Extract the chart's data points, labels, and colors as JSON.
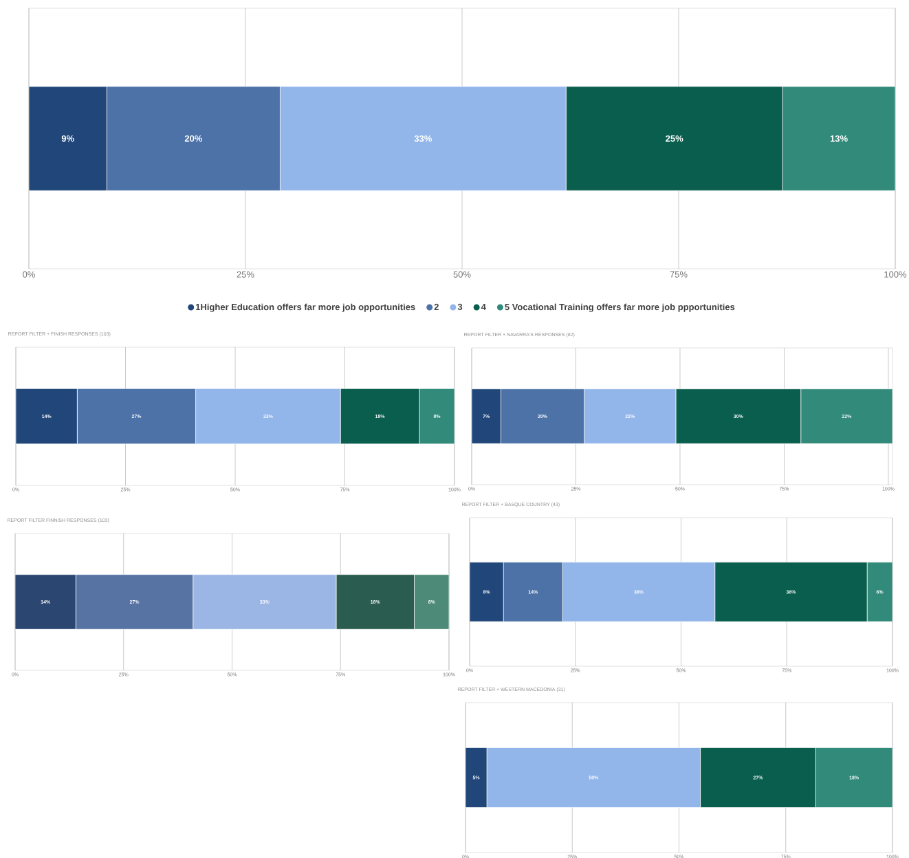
{
  "chart_data": [
    {
      "type": "bar",
      "orientation": "horizontal",
      "stacked": true,
      "categories": [
        null
      ],
      "xlim": [
        0,
        100
      ],
      "xticks": [
        {
          "value": 0,
          "label": "0%"
        },
        {
          "value": 25,
          "label": "25%"
        },
        {
          "value": 50,
          "label": "50%"
        },
        {
          "value": 75,
          "label": "75%"
        },
        {
          "value": 100,
          "label": "100%"
        }
      ],
      "grid": "x",
      "legend": "bottom",
      "marker": "circle",
      "series": [
        {
          "name": "1Higher Education offers far more job opportunities",
          "color": "#21477a",
          "values": [
            9
          ],
          "value_labels": [
            "9%"
          ]
        },
        {
          "name": "2",
          "color": "#4c72a8",
          "values": [
            20
          ],
          "value_labels": [
            "20%"
          ]
        },
        {
          "name": "3",
          "color": "#92b5ea",
          "values": [
            33
          ],
          "value_labels": [
            "33%"
          ]
        },
        {
          "name": "4",
          "color": "#0a5e4e",
          "values": [
            25
          ],
          "value_labels": [
            "25%"
          ]
        },
        {
          "name": "5 Vocational Training offers far more job ppportunities",
          "color": "#318a7a",
          "values": [
            13
          ],
          "value_labels": [
            "13%"
          ]
        }
      ]
    },
    {
      "type": "bar",
      "orientation": "horizontal",
      "stacked": true,
      "title": "REPORT FILTER + FINISH RESPONSES (103)",
      "categories": [
        null
      ],
      "xlim": [
        0,
        100
      ],
      "xticks": [
        {
          "value": 0,
          "label": "0%"
        },
        {
          "value": 25,
          "label": "25%"
        },
        {
          "value": 50,
          "label": "50%"
        },
        {
          "value": 75,
          "label": "75%"
        },
        {
          "value": 100,
          "label": "100%"
        }
      ],
      "grid": "x",
      "series": [
        {
          "color": "#21477a",
          "values": [
            14
          ],
          "value_labels": [
            "14%"
          ]
        },
        {
          "color": "#4c72a8",
          "values": [
            27
          ],
          "value_labels": [
            "27%"
          ]
        },
        {
          "color": "#92b5ea",
          "values": [
            33
          ],
          "value_labels": [
            "33%"
          ]
        },
        {
          "color": "#0a5e4e",
          "values": [
            18
          ],
          "value_labels": [
            "18%"
          ]
        },
        {
          "color": "#318a7a",
          "values": [
            8
          ],
          "value_labels": [
            "8%"
          ]
        }
      ]
    },
    {
      "type": "bar",
      "orientation": "horizontal",
      "stacked": true,
      "title": "REPORT FILTER + NAVARRA'S RESPONSES (82)",
      "categories": [
        null
      ],
      "xlim": [
        0,
        101
      ],
      "xticks": [
        {
          "value": 0,
          "label": "0%"
        },
        {
          "value": 25,
          "label": "25%"
        },
        {
          "value": 50,
          "label": "50%"
        },
        {
          "value": 75,
          "label": "75%"
        },
        {
          "value": 100,
          "label": "100%"
        }
      ],
      "grid": "x",
      "series": [
        {
          "color": "#21477a",
          "values": [
            7
          ],
          "value_labels": [
            "7%"
          ]
        },
        {
          "color": "#4c72a8",
          "values": [
            20
          ],
          "value_labels": [
            "20%"
          ]
        },
        {
          "color": "#92b5ea",
          "values": [
            22
          ],
          "value_labels": [
            "22%"
          ]
        },
        {
          "color": "#0a5e4e",
          "values": [
            30
          ],
          "value_labels": [
            "30%"
          ]
        },
        {
          "color": "#318a7a",
          "values": [
            22
          ],
          "value_labels": [
            "22%"
          ]
        }
      ]
    },
    {
      "type": "bar",
      "orientation": "horizontal",
      "stacked": true,
      "title": "REPORT FILTER FINNISH RESPONSES (103)",
      "categories": [
        null
      ],
      "xlim": [
        0,
        100
      ],
      "xticks": [
        {
          "value": 0,
          "label": "0%"
        },
        {
          "value": 25,
          "label": "25%"
        },
        {
          "value": 50,
          "label": "50%"
        },
        {
          "value": 75,
          "label": "75%"
        },
        {
          "value": 100,
          "label": "100%"
        }
      ],
      "grid": "x",
      "series": [
        {
          "color": "#2c4672",
          "values": [
            14
          ],
          "value_labels": [
            "14%"
          ]
        },
        {
          "color": "#5773a3",
          "values": [
            27
          ],
          "value_labels": [
            "27%"
          ]
        },
        {
          "color": "#9bb5e5",
          "values": [
            33
          ],
          "value_labels": [
            "33%"
          ]
        },
        {
          "color": "#2a5c4f",
          "values": [
            18
          ],
          "value_labels": [
            "18%"
          ]
        },
        {
          "color": "#4e8a78",
          "values": [
            8
          ],
          "value_labels": [
            "8%"
          ]
        }
      ]
    },
    {
      "type": "bar",
      "orientation": "horizontal",
      "stacked": true,
      "title": "REPORT FILTER + BASQUE COUNTRY (43)",
      "categories": [
        null
      ],
      "xlim": [
        0,
        100
      ],
      "xticks": [
        {
          "value": 0,
          "label": "0%"
        },
        {
          "value": 25,
          "label": "25%"
        },
        {
          "value": 50,
          "label": "50%"
        },
        {
          "value": 75,
          "label": "75%"
        },
        {
          "value": 100,
          "label": "100%"
        }
      ],
      "grid": "x",
      "series": [
        {
          "color": "#21477a",
          "values": [
            8
          ],
          "value_labels": [
            "8%"
          ]
        },
        {
          "color": "#4c72a8",
          "values": [
            14
          ],
          "value_labels": [
            "14%"
          ]
        },
        {
          "color": "#92b5ea",
          "values": [
            36
          ],
          "value_labels": [
            "36%"
          ]
        },
        {
          "color": "#0a5e4e",
          "values": [
            36
          ],
          "value_labels": [
            "36%"
          ]
        },
        {
          "color": "#318a7a",
          "values": [
            6
          ],
          "value_labels": [
            "6%"
          ]
        }
      ]
    },
    {
      "type": "bar",
      "orientation": "horizontal",
      "stacked": true,
      "title": "REPORT FILTER + WESTERN MACEDONIA (31)",
      "categories": [
        null
      ],
      "xlim": [
        0,
        100
      ],
      "xticks": [
        {
          "value": 0,
          "label": "0%"
        },
        {
          "value": 25,
          "label": "25%"
        },
        {
          "value": 50,
          "label": "50%"
        },
        {
          "value": 75,
          "label": "75%"
        },
        {
          "value": 100,
          "label": "100%"
        }
      ],
      "grid": "x",
      "series": [
        {
          "color": "#21477a",
          "values": [
            5
          ],
          "value_labels": [
            "5%"
          ]
        },
        {
          "color": "#4c72a8",
          "values": [
            0
          ],
          "value_labels": [
            null
          ]
        },
        {
          "color": "#92b5ea",
          "values": [
            50
          ],
          "value_labels": [
            "50%"
          ]
        },
        {
          "color": "#0a5e4e",
          "values": [
            27
          ],
          "value_labels": [
            "27%"
          ]
        },
        {
          "color": "#318a7a",
          "values": [
            18
          ],
          "value_labels": [
            "18%"
          ]
        }
      ]
    }
  ]
}
